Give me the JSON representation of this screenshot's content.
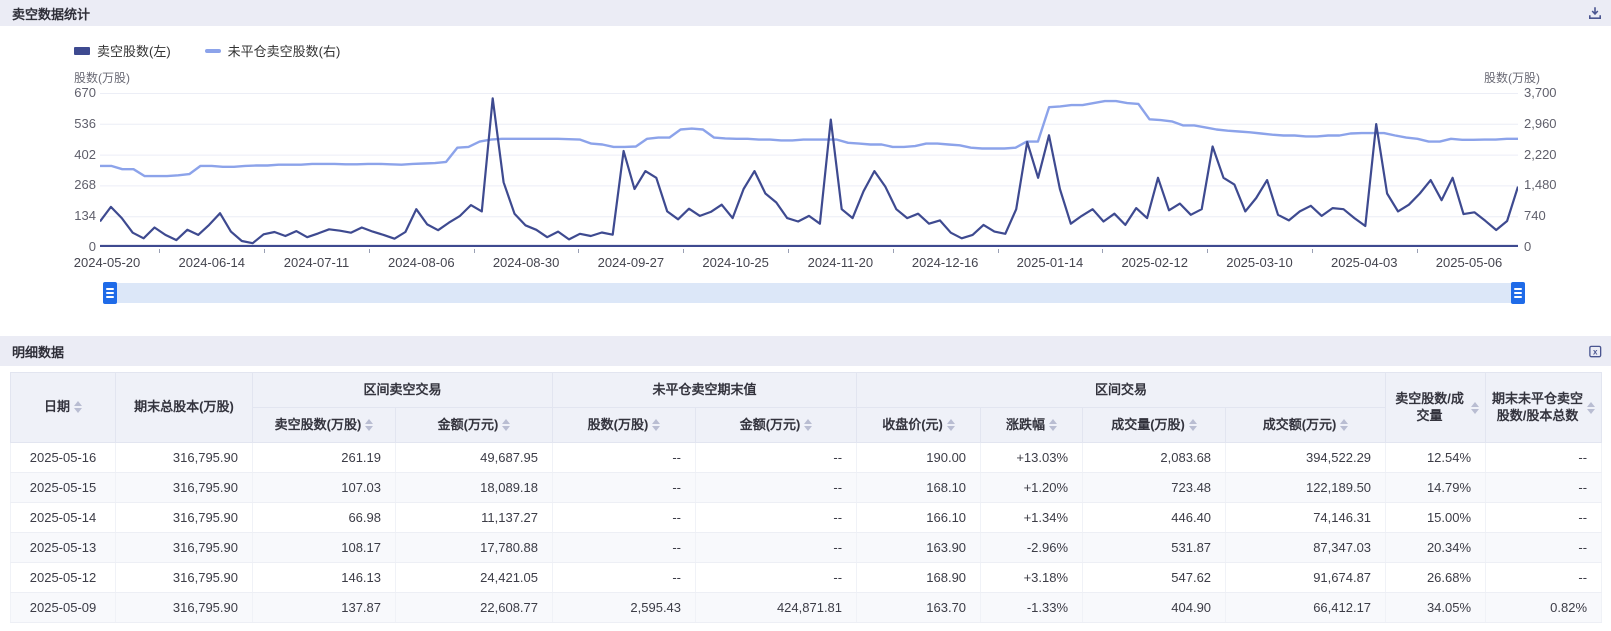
{
  "chart_panel": {
    "title": "卖空数据统计",
    "legend": [
      {
        "label": "卖空股数(左)",
        "color": "#3e4a90"
      },
      {
        "label": "未平仓卖空股数(右)",
        "color": "#8ca3ea"
      }
    ],
    "left_axis": {
      "title": "股数(万股)",
      "ticks": [
        "670",
        "536",
        "402",
        "268",
        "134",
        "0"
      ]
    },
    "right_axis": {
      "title": "股数(万股)",
      "ticks": [
        "3,700",
        "2,960",
        "2,220",
        "1,480",
        "740",
        "0"
      ]
    },
    "grid_color": "#eceef6",
    "axis_line_color": "#3e4a90",
    "data_zoom": {
      "track_color": "#dce7f8",
      "handle_color": "#1f6be8"
    }
  },
  "chart_data": {
    "type": "line",
    "title": "卖空数据统计",
    "x_labels": [
      "2024-05-20",
      "2024-06-14",
      "2024-07-11",
      "2024-08-06",
      "2024-08-30",
      "2024-09-27",
      "2024-10-25",
      "2024-11-20",
      "2024-12-16",
      "2025-01-14",
      "2025-02-12",
      "2025-03-10",
      "2025-04-03",
      "2025-05-06"
    ],
    "left_ylim": [
      0,
      670
    ],
    "right_ylim": [
      0,
      3700
    ],
    "ylabel_left": "股数(万股)",
    "ylabel_right": "股数(万股)",
    "series": [
      {
        "name": "卖空股数(左)",
        "axis": "left",
        "color": "#3e4a90",
        "values": [
          105,
          170,
          120,
          55,
          30,
          78,
          45,
          22,
          68,
          45,
          90,
          142,
          60,
          18,
          8,
          48,
          58,
          40,
          62,
          35,
          52,
          70,
          64,
          55,
          78,
          60,
          45,
          28,
          58,
          160,
          92,
          66,
          100,
          130,
          178,
          150,
          655,
          280,
          140,
          88,
          68,
          35,
          60,
          25,
          50,
          40,
          56,
          46,
          420,
          250,
          330,
          300,
          150,
          115,
          162,
          130,
          148,
          180,
          120,
          250,
          330,
          230,
          190,
          120,
          105,
          130,
          95,
          560,
          160,
          120,
          240,
          330,
          260,
          160,
          120,
          140,
          95,
          110,
          55,
          30,
          45,
          90,
          60,
          50,
          160,
          460,
          300,
          490,
          250,
          95,
          130,
          160,
          105,
          140,
          90,
          165,
          120,
          300,
          155,
          185,
          135,
          160,
          440,
          300,
          270,
          150,
          210,
          290,
          135,
          110,
          150,
          175,
          130,
          165,
          160,
          120,
          85,
          540,
          230,
          150,
          180,
          230,
          290,
          200,
          300,
          138,
          146,
          108,
          67,
          107,
          261
        ]
      },
      {
        "name": "未平仓卖空股数(右)",
        "axis": "right",
        "color": "#8ca3ea",
        "values": [
          1950,
          1950,
          1870,
          1870,
          1700,
          1700,
          1700,
          1720,
          1750,
          1950,
          1950,
          1930,
          1930,
          1950,
          1960,
          1960,
          1980,
          1980,
          1980,
          2000,
          2000,
          2000,
          1990,
          1990,
          2000,
          2000,
          1990,
          1980,
          2000,
          2010,
          2020,
          2050,
          2400,
          2420,
          2550,
          2600,
          2620,
          2620,
          2620,
          2620,
          2620,
          2620,
          2610,
          2600,
          2500,
          2480,
          2420,
          2420,
          2430,
          2620,
          2650,
          2650,
          2850,
          2870,
          2850,
          2650,
          2630,
          2620,
          2620,
          2600,
          2600,
          2580,
          2580,
          2600,
          2600,
          2600,
          2600,
          2520,
          2500,
          2480,
          2480,
          2420,
          2420,
          2440,
          2500,
          2500,
          2480,
          2460,
          2400,
          2380,
          2380,
          2380,
          2400,
          2550,
          2550,
          3400,
          3420,
          3450,
          3450,
          3500,
          3550,
          3550,
          3500,
          3480,
          3100,
          3080,
          3050,
          2950,
          2950,
          2900,
          2850,
          2820,
          2800,
          2780,
          2750,
          2720,
          2700,
          2700,
          2680,
          2680,
          2700,
          2700,
          2750,
          2760,
          2760,
          2760,
          2700,
          2650,
          2620,
          2550,
          2550,
          2620,
          2595,
          2595,
          2600,
          2600,
          2620,
          2620
        ]
      }
    ]
  },
  "table_panel": {
    "title": "明细数据",
    "up_color": "#f4502e",
    "down_color": "#0aa45e",
    "group_headers": {
      "short_trading": "区间卖空交易",
      "open_interest": "未平仓卖空期末值",
      "interval_trading": "区间交易"
    },
    "column_headers": {
      "date": "日期",
      "total_shares": "期末总股本(万股)",
      "short_shares": "卖空股数(万股)",
      "short_amount": "金额(万元)",
      "oi_shares": "股数(万股)",
      "oi_amount": "金额(万元)",
      "close": "收盘价(元)",
      "change": "涨跌幅",
      "volume": "成交量(万股)",
      "turnover": "成交额(万元)",
      "short_vol_ratio": "卖空股数/成交量",
      "oi_cap_ratio": "期末未平仓卖空股数/股本总数"
    },
    "rows": [
      [
        "2025-05-16",
        "316,795.90",
        "261.19",
        "49,687.95",
        "--",
        "--",
        "190.00",
        "+13.03%",
        "2,083.68",
        "394,522.29",
        "12.54%",
        "--"
      ],
      [
        "2025-05-15",
        "316,795.90",
        "107.03",
        "18,089.18",
        "--",
        "--",
        "168.10",
        "+1.20%",
        "723.48",
        "122,189.50",
        "14.79%",
        "--"
      ],
      [
        "2025-05-14",
        "316,795.90",
        "66.98",
        "11,137.27",
        "--",
        "--",
        "166.10",
        "+1.34%",
        "446.40",
        "74,146.31",
        "15.00%",
        "--"
      ],
      [
        "2025-05-13",
        "316,795.90",
        "108.17",
        "17,780.88",
        "--",
        "--",
        "163.90",
        "-2.96%",
        "531.87",
        "87,347.03",
        "20.34%",
        "--"
      ],
      [
        "2025-05-12",
        "316,795.90",
        "146.13",
        "24,421.05",
        "--",
        "--",
        "168.90",
        "+3.18%",
        "547.62",
        "91,674.87",
        "26.68%",
        "--"
      ],
      [
        "2025-05-09",
        "316,795.90",
        "137.87",
        "22,608.77",
        "2,595.43",
        "424,871.81",
        "163.70",
        "-1.33%",
        "404.90",
        "66,412.17",
        "34.05%",
        "0.82%"
      ]
    ]
  }
}
